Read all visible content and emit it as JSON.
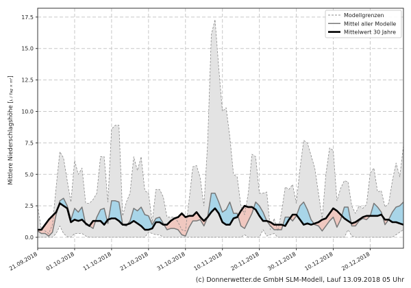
{
  "chart_data": {
    "type": "line",
    "title": "",
    "xlabel": "",
    "ylabel": "Mittlere Niederschlagshöhe",
    "ylabel_unit_num": "L",
    "ylabel_unit_den": "Tag × m²",
    "start_date": "21.09.2018",
    "x_unit": "days since 21.09.2018",
    "xlim": [
      0,
      99
    ],
    "ylim": [
      -0.87,
      18.2
    ],
    "grid": true,
    "legend_position": "top-right",
    "xticks": [
      {
        "day": 0,
        "label": "21.09.2018"
      },
      {
        "day": 10,
        "label": "01.10.2018"
      },
      {
        "day": 20,
        "label": "11.10.2018"
      },
      {
        "day": 30,
        "label": "21.10.2018"
      },
      {
        "day": 40,
        "label": "31.10.2018"
      },
      {
        "day": 50,
        "label": "10.11.2018"
      },
      {
        "day": 60,
        "label": "20.11.2018"
      },
      {
        "day": 70,
        "label": "30.11.2018"
      },
      {
        "day": 80,
        "label": "10.12.2018"
      },
      {
        "day": 90,
        "label": "20.12.2018"
      }
    ],
    "yticks": [
      "0.0",
      "2.5",
      "5.0",
      "7.5",
      "10.0",
      "12.5",
      "15.0",
      "17.5"
    ],
    "series": [
      {
        "name": "Modellgrenzen",
        "role": "upper",
        "color": "#888888",
        "values": [
          2.5,
          0.6,
          0.5,
          0.3,
          1.0,
          4.0,
          6.8,
          6.3,
          4.5,
          2.8,
          6.1,
          5.0,
          5.5,
          2.7,
          2.7,
          3.0,
          3.5,
          6.4,
          6.4,
          2.8,
          8.6,
          8.9,
          8.9,
          1.7,
          2.8,
          3.5,
          6.4,
          5.3,
          6.4,
          3.7,
          3.5,
          1.2,
          3.8,
          3.8,
          3.2,
          1.6,
          1.6,
          1.6,
          1.2,
          0.6,
          0.5,
          3.0,
          5.6,
          5.7,
          4.7,
          2.5,
          7.5,
          16.1,
          17.3,
          13.5,
          10.0,
          10.3,
          8.0,
          5.0,
          4.8,
          2.5,
          1.8,
          3.5,
          6.6,
          6.4,
          3.5,
          3.5,
          3.6,
          0.6,
          1.5,
          0.5,
          2.0,
          4.0,
          3.8,
          4.2,
          2.7,
          5.5,
          7.7,
          7.5,
          6.5,
          5.5,
          3.5,
          1.5,
          5.0,
          7.1,
          6.9,
          2.9,
          3.9,
          4.5,
          4.4,
          2.5,
          1.9,
          2.5,
          2.3,
          2.6,
          5.1,
          5.5,
          3.6,
          3.7,
          2.4,
          2.7,
          4.5,
          5.9,
          4.8,
          7.3
        ]
      },
      {
        "name": "Modellgrenzen",
        "role": "lower",
        "color": "#888888",
        "values": [
          0,
          0,
          0,
          0,
          0,
          0.3,
          0.9,
          0.3,
          0.05,
          0,
          0.3,
          0.3,
          0.3,
          0.1,
          0,
          0,
          0,
          0,
          0,
          0,
          0,
          0,
          0,
          0,
          0,
          0,
          0,
          0,
          0,
          0,
          0.4,
          0.3,
          0.2,
          0.2,
          0,
          0,
          0,
          0,
          0,
          0,
          0,
          0,
          0,
          0,
          0,
          0,
          0,
          0,
          0,
          0,
          0,
          0,
          0,
          0,
          0,
          0,
          0.2,
          0,
          0,
          0,
          0,
          0.6,
          0.1,
          0.2,
          0.3,
          0,
          0,
          0,
          0,
          0,
          0,
          0,
          0,
          0,
          0,
          0,
          0,
          0,
          0,
          0,
          0,
          0,
          0,
          0,
          0.6,
          0.1,
          0,
          0,
          0,
          0,
          0,
          0,
          0,
          0,
          0,
          0,
          0,
          0.2,
          0.4,
          0.6
        ]
      },
      {
        "name": "Mittel aller Modelle",
        "role": "mean",
        "color": "#777777",
        "values": [
          0.5,
          0.3,
          0.3,
          0.1,
          0.4,
          1.8,
          2.9,
          3.1,
          2.5,
          1.4,
          2.3,
          2.0,
          2.4,
          1.0,
          0.9,
          0.7,
          1.6,
          2.2,
          2.3,
          1.1,
          2.9,
          2.9,
          2.8,
          1.0,
          0.9,
          1.3,
          2.3,
          2.1,
          2.4,
          1.8,
          1.7,
          1.0,
          1.5,
          1.6,
          1.1,
          0.6,
          0.7,
          0.7,
          0.6,
          0.2,
          0.1,
          0.8,
          1.3,
          1.3,
          1.4,
          0.9,
          1.6,
          3.5,
          3.5,
          2.8,
          2.0,
          2.2,
          2.8,
          1.9,
          1.9,
          0.9,
          0.7,
          1.3,
          1.9,
          2.8,
          2.5,
          2.0,
          1.3,
          0.9,
          0.6,
          0.6,
          0.6,
          1.6,
          1.6,
          1.3,
          1.7,
          2.5,
          2.8,
          2.2,
          1.4,
          1.0,
          0.9,
          0.5,
          0.9,
          1.3,
          1.6,
          0.8,
          1.4,
          2.4,
          2.4,
          0.9,
          0.9,
          1.3,
          1.5,
          1.4,
          1.7,
          2.7,
          2.4,
          2.0,
          1.0,
          1.4,
          2.0,
          2.4,
          2.5,
          2.8
        ]
      },
      {
        "name": "Mittelwert 30 Jahre",
        "role": "climate",
        "color": "#000000",
        "values": [
          0.6,
          0.6,
          1.0,
          1.4,
          1.7,
          2.0,
          2.7,
          2.5,
          2.3,
          1.2,
          1.4,
          1.3,
          1.4,
          1.1,
          0.9,
          1.3,
          1.3,
          1.3,
          1.0,
          1.4,
          1.5,
          1.5,
          1.3,
          1.0,
          1.0,
          1.1,
          1.3,
          1.1,
          0.9,
          0.6,
          0.6,
          0.7,
          1.2,
          1.2,
          1.0,
          1.0,
          1.3,
          1.5,
          1.6,
          1.9,
          1.6,
          1.7,
          1.7,
          2.0,
          1.6,
          1.3,
          1.6,
          2.0,
          2.3,
          1.9,
          1.2,
          1.0,
          1.0,
          1.5,
          1.6,
          2.1,
          2.5,
          2.4,
          2.4,
          2.2,
          1.7,
          1.3,
          1.3,
          1.2,
          1.0,
          1.0,
          1.0,
          0.9,
          1.4,
          1.8,
          1.8,
          1.4,
          1.0,
          1.1,
          1.0,
          1.1,
          1.2,
          1.4,
          1.5,
          1.9,
          2.3,
          2.1,
          1.8,
          1.5,
          1.3,
          1.1,
          1.2,
          1.4,
          1.6,
          1.7,
          1.7,
          1.7,
          1.7,
          1.8,
          1.4,
          1.4,
          1.2,
          1.2,
          1.1,
          1.0
        ]
      }
    ],
    "legend": [
      "Modellgrenzen",
      "Mittel aller Modelle",
      "Mittelwert 30 Jahre"
    ],
    "colors": {
      "band": "#e3e3e3",
      "above": "#a8d5e8",
      "below": "#f0c8c0"
    }
  },
  "footer": "(c) Donnerwetter.de GmbH SLM-Modell, Lauf 13.09.2018 05 Uhr"
}
